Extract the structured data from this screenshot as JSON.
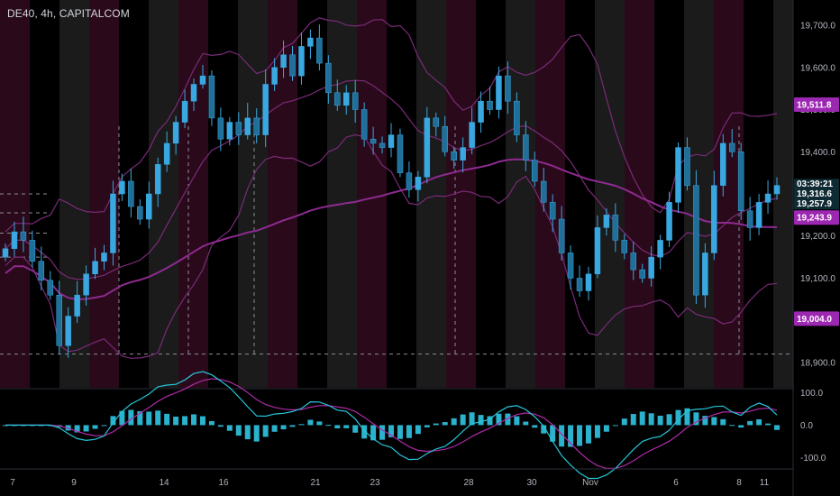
{
  "header": {
    "title": "DE40, 4h, CAPITALCOM"
  },
  "colors": {
    "bg": "#000000",
    "band_magenta": "#2a0a1a",
    "band_gray": "#1b1b1b",
    "candle": "#3aa8e0",
    "bb": "#7a2a78",
    "ma": "#8e2a90",
    "macd": "#26c6da",
    "signal": "#b02aa8",
    "hist": "#2bb2cc",
    "badge": "#9c27b0",
    "axis_text": "#b2b5be"
  },
  "price_axis": {
    "ticks": [
      "19,700.0",
      "19,600.0",
      "19,500.0",
      "19,400.0",
      "19,300.0",
      "19,200.0",
      "19,100.0",
      "19,000.0",
      "18,900.0"
    ],
    "badges": {
      "upper": "19,511.8",
      "timer": "03:39:21",
      "last_top": "19,316.6",
      "last_bottom": "19,257.9",
      "mid": "19,243.9",
      "lower": "19,004.0"
    }
  },
  "osc_axis": {
    "ticks": [
      "100.0",
      "0.0",
      "-100.0"
    ]
  },
  "time_axis": {
    "labels": [
      "7",
      "9",
      "14",
      "16",
      "21",
      "23",
      "28",
      "30",
      "Nov",
      "6",
      "8",
      "11"
    ]
  },
  "chart_data": {
    "type": "candlestick",
    "symbol": "DE40",
    "timeframe": "4h",
    "source": "CAPITALCOM",
    "ylim": [
      18840,
      19760
    ],
    "osc_ylim": [
      -130,
      110
    ],
    "close_path": [
      19170,
      19210,
      19190,
      19140,
      19095,
      19060,
      18940,
      19010,
      19060,
      19110,
      19140,
      19160,
      19300,
      19330,
      19270,
      19240,
      19300,
      19370,
      19420,
      19470,
      19520,
      19560,
      19580,
      19480,
      19430,
      19470,
      19440,
      19480,
      19440,
      19560,
      19600,
      19630,
      19580,
      19650,
      19670,
      19610,
      19540,
      19510,
      19540,
      19500,
      19430,
      19420,
      19410,
      19440,
      19350,
      19310,
      19340,
      19480,
      19460,
      19400,
      19380,
      19410,
      19470,
      19520,
      19500,
      19580,
      19520,
      19440,
      19380,
      19330,
      19280,
      19240,
      19160,
      19100,
      19070,
      19110,
      19220,
      19250,
      19190,
      19160,
      19120,
      19100,
      19150,
      19190,
      19280,
      19410,
      19320,
      19060,
      19160,
      19320,
      19420,
      19400,
      19260,
      19220,
      19280,
      19300,
      19320
    ]
  }
}
